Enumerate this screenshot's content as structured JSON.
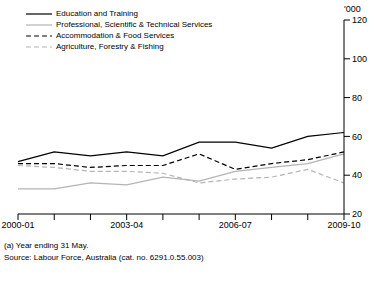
{
  "chart_data": {
    "type": "line",
    "y_label": "'000",
    "categories": [
      "2000-01",
      null,
      null,
      "2003-04",
      null,
      null,
      "2006-07",
      null,
      null,
      "2009-10"
    ],
    "series": [
      {
        "name": "Education and Training",
        "color": "#000000",
        "line_style": "solid",
        "values": [
          47,
          52,
          50,
          52,
          50,
          57,
          57,
          54,
          60,
          62
        ]
      },
      {
        "name": "Professional, Scientific & Technical Services",
        "color": "#b4b4b4",
        "line_style": "solid",
        "values": [
          33,
          33,
          36,
          35,
          39,
          37,
          42,
          44,
          46,
          51
        ]
      },
      {
        "name": "Accommodation & Food Services",
        "color": "#000000",
        "line_style": "dashed",
        "values": [
          46,
          46,
          44,
          45,
          45,
          51,
          43,
          46,
          48,
          52
        ]
      },
      {
        "name": "Agriculture, Forestry & Fishing",
        "color": "#b4b4b4",
        "line_style": "dashed",
        "values": [
          45,
          44,
          42,
          42,
          41,
          36,
          38,
          39,
          43,
          36
        ]
      }
    ],
    "ylim": [
      20,
      120
    ],
    "yticks": [
      20,
      40,
      60,
      80,
      100,
      120
    ],
    "grid": false,
    "legend": "upper left",
    "annotations": [
      "(a) Year ending 31 May.",
      "Source: Labour Force, Australia (cat. no. 6291.0.55.003)"
    ]
  }
}
